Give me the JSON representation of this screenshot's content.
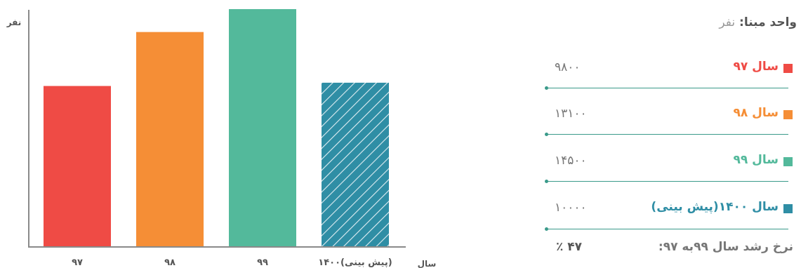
{
  "chart_data": {
    "type": "bar",
    "ylabel": "نفر",
    "xlabel": "سال",
    "categories": [
      "۹۷",
      "۹۸",
      "۹۹",
      "۱۴۰۰(پیش بینی)"
    ],
    "values": [
      9800,
      13100,
      14500,
      10000
    ],
    "ylim": [
      0,
      14500
    ],
    "colors": [
      "#ef4b45",
      "#f58e36",
      "#53b99b",
      "#2f8ea5"
    ],
    "hatched": [
      false,
      false,
      false,
      true
    ]
  },
  "legend": {
    "unit_label": "واحد مبنا:",
    "unit_value": "نفر",
    "items": [
      {
        "label": "سال ۹۷",
        "value": "۹۸۰۰",
        "color": "#ef4b45"
      },
      {
        "label": "سال ۹۸",
        "value": "۱۳۱۰۰",
        "color": "#f58e36"
      },
      {
        "label": "سال ۹۹",
        "value": "۱۴۵۰۰",
        "color": "#53b99b"
      },
      {
        "label": "سال ۱۴۰۰(پیش بینی)",
        "value": "۱۰۰۰۰",
        "color": "#2f8ea5"
      }
    ],
    "growth_label": "نرخ رشد سال ۹۹به ۹۷:",
    "growth_value": "٪ ۴۷"
  }
}
